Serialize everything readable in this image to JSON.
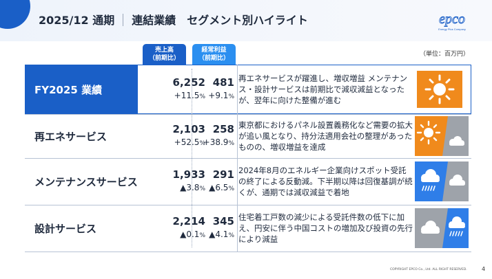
{
  "header": {
    "period": "2025/12 通期",
    "title": "連結業績　セグメント別ハイライト",
    "logo_text": "epco",
    "logo_tagline": "Energy Plus Company"
  },
  "unit_note": "（単位：百万円）",
  "columns": {
    "sales": {
      "line1": "売上高",
      "line2": "（前期比）"
    },
    "profit": {
      "line1": "経常利益",
      "line2": "（前期比）"
    }
  },
  "rows": [
    {
      "label": "FY2025 業績",
      "sales": "6,252",
      "sales_change": "+11.5",
      "profit": "481",
      "profit_change": "+9.1",
      "desc": "再エネサービスが躍進し、増収増益 メンテナンス・設計サービスは前期比で減収減益となったが、翌年に向けた整備が進む",
      "weather": [
        "sun"
      ]
    },
    {
      "label": "再エネサービス",
      "sales": "2,103",
      "sales_change": "+52.5",
      "profit": "258",
      "profit_change": "+38.9",
      "desc": "東京都におけるパネル設置義務化など需要の拡大が追い風となり、持分法適用会社の整理があったものの、増収増益を達成",
      "weather": [
        "sun",
        "cloud"
      ]
    },
    {
      "label": "メンテナンスサービス",
      "sales": "1,933",
      "sales_change": "▲3.8",
      "profit": "291",
      "profit_change": "▲6.5",
      "desc": "2024年8月のエネルギー企業向けスポット受託の終了による反動減。下半期以降は回復基調が続くが、通期では減収減益で着地",
      "weather": [
        "rain",
        "cloud"
      ]
    },
    {
      "label": "設計サービス",
      "sales": "2,214",
      "sales_change": "▲0.1",
      "profit": "345",
      "profit_change": "▲4.1",
      "desc": "住宅着工戸数の減少による受託件数の低下に加え、円安に伴う中国コストの増加及び投資の先行により減益",
      "weather": [
        "cloud",
        "rain"
      ]
    }
  ],
  "percent_sign": "%",
  "footer": {
    "copyright": "COPYRIGHT EPCO Co., Ltd. ALL RIGHT RESERVED.",
    "page": "4"
  },
  "colors": {
    "brand": "#1a5fc7",
    "profit_header": "#2b8ff0",
    "sun_bg": "#f08a1c",
    "rain_bg": "#2f7ee8",
    "cloud_bg": "#9ea3aa"
  }
}
